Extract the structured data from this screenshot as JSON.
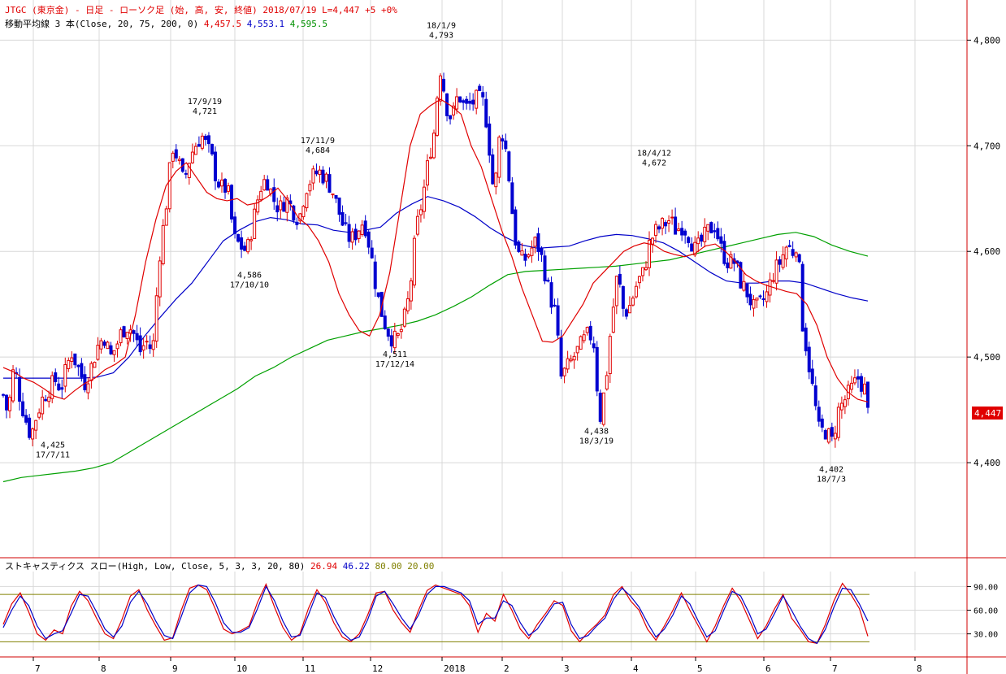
{
  "header": {
    "line1": "JTGC (東京金) - 日足 - ローソク足 (始, 高, 安, 終値)  2018/07/19  L=4,447 +5  +0%",
    "ma_prefix": "移動平均線 3 本(Close, 20, 75, 200, 0)",
    "ma20_value": "4,457.5",
    "ma75_value": "4,553.1",
    "ma200_value": "4,595.5",
    "stoch_prefix": "ストキャスティクス スロー(High, Low, Close, 5, 3, 3, 20, 80)",
    "stoch_k": "26.94",
    "stoch_d": "46.22",
    "stoch_hi": "80.00",
    "stoch_lo": "20.00"
  },
  "last_price_label": "4,447",
  "colors": {
    "up": "#e00000",
    "down": "#0000d0",
    "ma20": "#e00000",
    "ma75": "#0000c8",
    "ma200": "#00a000",
    "stoch_k": "#0000c8",
    "stoch_d": "#e00000",
    "stoch_ref": "#808000",
    "grid": "#d8d8d8",
    "frame": "#d00000"
  },
  "chart_data": [
    {
      "type": "line",
      "title": "JTGC (東京金) - 日足 - ローソク足 (始, 高, 安, 終値)",
      "ylim": [
        4310,
        4838
      ],
      "yticks": [
        4400,
        4500,
        4600,
        4700,
        4800
      ],
      "ytick_labels": [
        "4,400",
        "4,500",
        "4,600",
        "4,700",
        "4,800"
      ],
      "grid": true,
      "candles": {
        "count": 266,
        "close_path": [
          [
            0,
            4468
          ],
          [
            6,
            4462
          ],
          [
            10,
            4440
          ],
          [
            14,
            4480
          ],
          [
            18,
            4490
          ],
          [
            25,
            4460
          ],
          [
            32,
            4440
          ],
          [
            38,
            4425
          ],
          [
            45,
            4445
          ],
          [
            52,
            4460
          ],
          [
            60,
            4470
          ],
          [
            68,
            4478
          ],
          [
            75,
            4470
          ],
          [
            82,
            4490
          ],
          [
            88,
            4505
          ],
          [
            96,
            4490
          ],
          [
            104,
            4475
          ],
          [
            112,
            4490
          ],
          [
            120,
            4510
          ],
          [
            128,
            4520
          ],
          [
            136,
            4500
          ],
          [
            143,
            4510
          ],
          [
            150,
            4525
          ],
          [
            158,
            4530
          ],
          [
            166,
            4520
          ],
          [
            172,
            4505
          ],
          [
            180,
            4515
          ],
          [
            188,
            4505
          ],
          [
            196,
            4595
          ],
          [
            204,
            4640
          ],
          [
            212,
            4700
          ],
          [
            218,
            4690
          ],
          [
            226,
            4665
          ],
          [
            234,
            4690
          ],
          [
            240,
            4700
          ],
          [
            248,
            4710
          ],
          [
            254,
            4700
          ],
          [
            260,
            4690
          ],
          [
            266,
            4670
          ],
          [
            272,
            4660
          ],
          [
            280,
            4660
          ],
          [
            288,
            4612
          ],
          [
            296,
            4605
          ],
          [
            304,
            4600
          ],
          [
            312,
            4630
          ],
          [
            320,
            4660
          ],
          [
            328,
            4670
          ],
          [
            336,
            4650
          ],
          [
            344,
            4640
          ],
          [
            352,
            4650
          ],
          [
            360,
            4640
          ],
          [
            368,
            4630
          ],
          [
            376,
            4660
          ],
          [
            384,
            4670
          ],
          [
            392,
            4676
          ],
          [
            400,
            4670
          ],
          [
            408,
            4660
          ],
          [
            416,
            4640
          ],
          [
            424,
            4620
          ],
          [
            432,
            4610
          ],
          [
            440,
            4620
          ],
          [
            448,
            4630
          ],
          [
            456,
            4600
          ],
          [
            464,
            4560
          ],
          [
            472,
            4535
          ],
          [
            480,
            4520
          ],
          [
            488,
            4515
          ],
          [
            496,
            4530
          ],
          [
            504,
            4560
          ],
          [
            512,
            4620
          ],
          [
            520,
            4650
          ],
          [
            528,
            4690
          ],
          [
            536,
            4720
          ],
          [
            540,
            4775
          ],
          [
            544,
            4770
          ],
          [
            548,
            4740
          ],
          [
            556,
            4725
          ],
          [
            564,
            4750
          ],
          [
            572,
            4735
          ],
          [
            580,
            4740
          ],
          [
            588,
            4745
          ],
          [
            596,
            4740
          ],
          [
            602,
            4700
          ],
          [
            608,
            4650
          ],
          [
            616,
            4720
          ],
          [
            624,
            4690
          ],
          [
            630,
            4640
          ],
          [
            636,
            4600
          ],
          [
            644,
            4590
          ],
          [
            652,
            4600
          ],
          [
            660,
            4610
          ],
          [
            668,
            4590
          ],
          [
            676,
            4560
          ],
          [
            684,
            4540
          ],
          [
            690,
            4480
          ],
          [
            698,
            4490
          ],
          [
            706,
            4500
          ],
          [
            714,
            4510
          ],
          [
            722,
            4520
          ],
          [
            730,
            4520
          ],
          [
            738,
            4440
          ],
          [
            746,
            4480
          ],
          [
            752,
            4530
          ],
          [
            760,
            4580
          ],
          [
            768,
            4540
          ],
          [
            776,
            4550
          ],
          [
            784,
            4570
          ],
          [
            792,
            4580
          ],
          [
            800,
            4610
          ],
          [
            808,
            4620
          ],
          [
            816,
            4625
          ],
          [
            824,
            4630
          ],
          [
            832,
            4620
          ],
          [
            840,
            4625
          ],
          [
            848,
            4615
          ],
          [
            856,
            4600
          ],
          [
            864,
            4610
          ],
          [
            872,
            4620
          ],
          [
            880,
            4625
          ],
          [
            888,
            4600
          ],
          [
            896,
            4590
          ],
          [
            904,
            4590
          ],
          [
            912,
            4570
          ],
          [
            920,
            4560
          ],
          [
            928,
            4545
          ],
          [
            936,
            4550
          ],
          [
            944,
            4560
          ],
          [
            952,
            4580
          ],
          [
            960,
            4590
          ],
          [
            968,
            4605
          ],
          [
            976,
            4600
          ],
          [
            982,
            4612
          ],
          [
            986,
            4540
          ],
          [
            992,
            4510
          ],
          [
            1000,
            4470
          ],
          [
            1008,
            4430
          ],
          [
            1016,
            4430
          ],
          [
            1024,
            4420
          ],
          [
            1032,
            4450
          ],
          [
            1040,
            4460
          ],
          [
            1048,
            4470
          ],
          [
            1056,
            4480
          ],
          [
            1064,
            4470
          ],
          [
            1068,
            4447
          ]
        ],
        "annotations": [
          {
            "date": "17/7/11",
            "value": "4,425",
            "type": "low"
          },
          {
            "date": "17/9/19",
            "value": "4,721",
            "type": "high"
          },
          {
            "date": "17/10/10",
            "value": "4,586",
            "type": "low"
          },
          {
            "date": "17/11/9",
            "value": "4,684",
            "type": "high"
          },
          {
            "date": "17/12/14",
            "value": "4,511",
            "type": "low"
          },
          {
            "date": "18/1/9",
            "value": "4,793",
            "type": "high"
          },
          {
            "date": "18/3/19",
            "value": "4,438",
            "type": "low"
          },
          {
            "date": "18/4/12",
            "value": "4,672",
            "type": "high"
          },
          {
            "date": "18/7/3",
            "value": "4,402",
            "type": "low"
          }
        ]
      },
      "series": [
        {
          "name": "20",
          "values": [
            4490,
            4486,
            4480,
            4476,
            4470,
            4463,
            4460,
            4468,
            4475,
            4480,
            4488,
            4493,
            4500,
            4540,
            4590,
            4630,
            4662,
            4676,
            4684,
            4670,
            4656,
            4650,
            4648,
            4650,
            4644,
            4646,
            4652,
            4660,
            4648,
            4632,
            4624,
            4610,
            4590,
            4560,
            4540,
            4525,
            4520,
            4540,
            4580,
            4640,
            4700,
            4730,
            4738,
            4744,
            4738,
            4730,
            4700,
            4680,
            4650,
            4620,
            4595,
            4565,
            4540,
            4515,
            4514,
            4520,
            4535,
            4550,
            4570,
            4580,
            4590,
            4600,
            4605,
            4608,
            4606,
            4600,
            4597,
            4595,
            4598,
            4605,
            4607,
            4600,
            4590,
            4578,
            4572,
            4568,
            4565,
            4562,
            4560,
            4550,
            4530,
            4500,
            4480,
            4467,
            4460,
            4457.5
          ]
        },
        {
          "name": "75",
          "values": [
            4480,
            4480,
            4480,
            4480,
            4480,
            4480,
            4481,
            4485,
            4500,
            4520,
            4538,
            4555,
            4570,
            4590,
            4610,
            4620,
            4628,
            4632,
            4630,
            4626,
            4625,
            4620,
            4618,
            4620,
            4623,
            4636,
            4645,
            4652,
            4648,
            4642,
            4633,
            4622,
            4613,
            4606,
            4603,
            4604,
            4605,
            4610,
            4614,
            4616,
            4615,
            4612,
            4608,
            4600,
            4590,
            4580,
            4572,
            4570,
            4570,
            4572,
            4572,
            4570,
            4565,
            4560,
            4556,
            4553.1
          ]
        },
        {
          "name": "200",
          "values": [
            4382,
            4386,
            4388,
            4390,
            4392,
            4395,
            4400,
            4410,
            4420,
            4430,
            4440,
            4450,
            4460,
            4470,
            4482,
            4490,
            4500,
            4508,
            4516,
            4520,
            4524,
            4527,
            4530,
            4534,
            4540,
            4548,
            4557,
            4568,
            4578,
            4581,
            4582,
            4583,
            4584,
            4585,
            4586,
            4588,
            4590,
            4592,
            4596,
            4600,
            4604,
            4608,
            4612,
            4616,
            4618,
            4614,
            4606,
            4600,
            4595.5
          ]
        }
      ]
    },
    {
      "type": "line",
      "title": "ストキャスティクス スロー(High, Low, Close, 5, 3, 3, 20, 80)",
      "ylim": [
        9,
        109
      ],
      "yticks": [
        30,
        60,
        90
      ],
      "ytick_labels": [
        "30.00",
        "60.00",
        "90.00"
      ],
      "reference_lines": [
        80,
        20
      ],
      "x_tick_labels": [
        "7",
        "8",
        "9",
        "10",
        "11",
        "12",
        "2018",
        "2",
        "3",
        "4",
        "5",
        "6",
        "7",
        "8"
      ],
      "series": [
        {
          "name": "26.94",
          "values": [
            42,
            68,
            82,
            58,
            30,
            22,
            35,
            30,
            65,
            84,
            72,
            50,
            30,
            24,
            48,
            78,
            86,
            60,
            40,
            22,
            25,
            60,
            88,
            92,
            86,
            62,
            36,
            30,
            34,
            40,
            70,
            93,
            64,
            38,
            22,
            30,
            62,
            86,
            70,
            44,
            26,
            20,
            30,
            54,
            82,
            84,
            60,
            44,
            32,
            60,
            85,
            92,
            88,
            84,
            80,
            66,
            32,
            56,
            46,
            80,
            60,
            36,
            24,
            42,
            56,
            72,
            66,
            34,
            20,
            32,
            42,
            54,
            80,
            90,
            72,
            60,
            36,
            22,
            40,
            60,
            82,
            60,
            40,
            20,
            40,
            66,
            88,
            72,
            48,
            24,
            40,
            62,
            80,
            50,
            36,
            20,
            18,
            42,
            72,
            94,
            80,
            62,
            26.94
          ]
        },
        {
          "name": "46.22",
          "values": [
            38,
            60,
            78,
            66,
            40,
            24,
            30,
            34,
            56,
            80,
            78,
            58,
            36,
            26,
            40,
            70,
            84,
            68,
            46,
            28,
            24,
            52,
            82,
            92,
            90,
            70,
            44,
            32,
            32,
            38,
            62,
            90,
            72,
            46,
            26,
            28,
            54,
            82,
            76,
            52,
            32,
            22,
            26,
            48,
            78,
            84,
            68,
            50,
            36,
            54,
            80,
            90,
            90,
            86,
            82,
            72,
            42,
            50,
            50,
            72,
            66,
            44,
            28,
            36,
            52,
            68,
            70,
            42,
            24,
            28,
            40,
            50,
            74,
            88,
            78,
            64,
            44,
            26,
            36,
            54,
            78,
            68,
            46,
            26,
            34,
            60,
            84,
            78,
            56,
            30,
            36,
            56,
            78,
            60,
            40,
            24,
            18,
            36,
            64,
            88,
            86,
            68,
            46.22
          ]
        }
      ]
    }
  ]
}
